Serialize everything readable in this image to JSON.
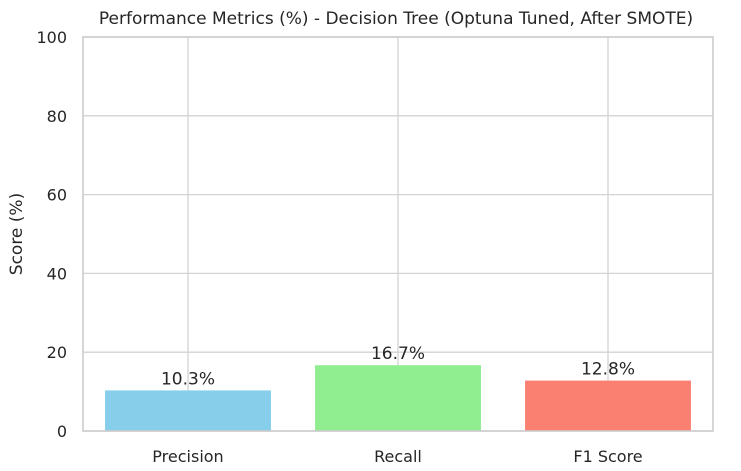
{
  "chart_data": {
    "type": "bar",
    "title": "Performance Metrics (%) - Decision Tree (Optuna Tuned, After SMOTE)",
    "xlabel": "",
    "ylabel": "Score (%)",
    "categories": [
      "Precision",
      "Recall",
      "F1 Score"
    ],
    "values": [
      10.3,
      16.7,
      12.8
    ],
    "data_labels": [
      "10.3%",
      "16.7%",
      "12.8%"
    ],
    "colors": [
      "#87ceeb",
      "#90ee90",
      "#fa8072"
    ],
    "ylim": [
      0,
      100
    ],
    "yticks": [
      0,
      20,
      40,
      60,
      80,
      100
    ],
    "grid": true,
    "legend": "none"
  }
}
